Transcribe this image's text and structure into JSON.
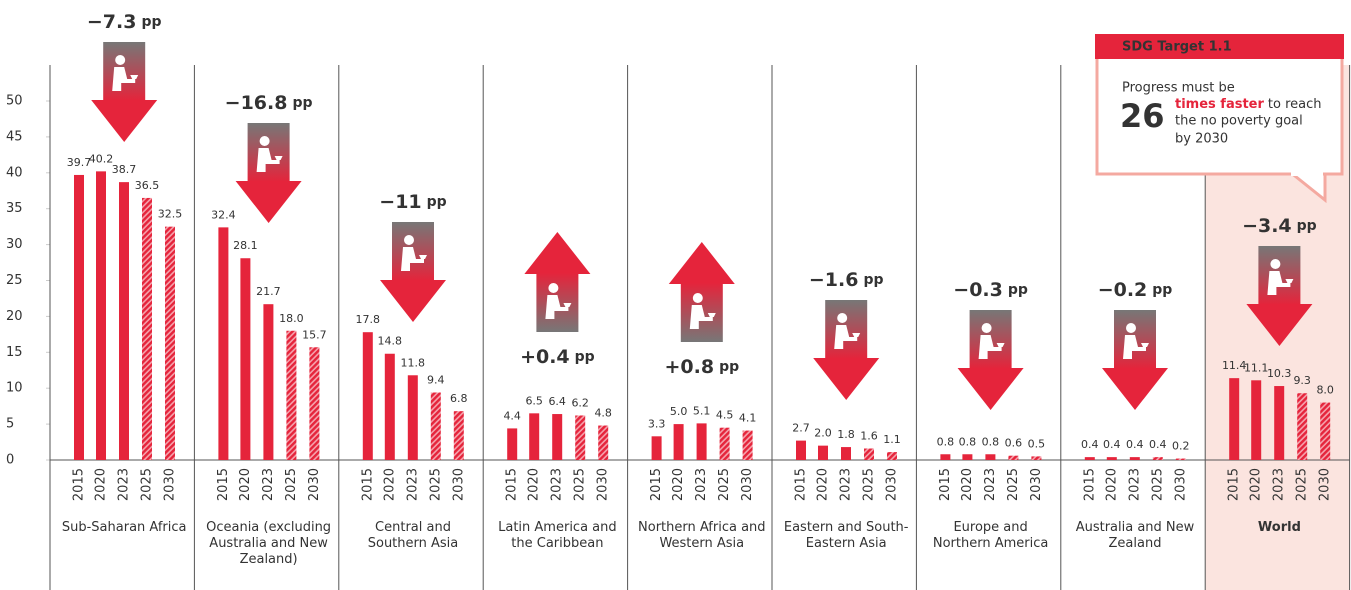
{
  "chart_data": {
    "type": "bar",
    "categories": [
      "2015",
      "2020",
      "2023",
      "2025",
      "2030"
    ],
    "ylim": [
      0,
      50
    ],
    "yticks": [
      0,
      5,
      10,
      15,
      20,
      25,
      30,
      35,
      40,
      45,
      50
    ],
    "color": "#e5243b",
    "change_unit": "pp",
    "groups": [
      {
        "name": "Sub-Saharan Africa",
        "values": [
          39.7,
          40.2,
          38.7,
          36.5,
          32.5
        ],
        "value_labels": [
          "39.7",
          "40.2",
          "38.7",
          "36.5",
          "32.5"
        ],
        "change": -7.3,
        "change_label": "−7.3"
      },
      {
        "name": "Oceania (excluding Australia and New Zealand)",
        "values": [
          32.4,
          28.1,
          21.7,
          18.0,
          15.7
        ],
        "value_labels": [
          "32.4",
          "28.1",
          "21.7",
          "18.0",
          "15.7"
        ],
        "change": -16.8,
        "change_label": "−16.8"
      },
      {
        "name": "Central and Southern Asia",
        "values": [
          17.8,
          14.8,
          11.8,
          9.4,
          6.8
        ],
        "value_labels": [
          "17.8",
          "14.8",
          "11.8",
          "9.4",
          "6.8"
        ],
        "change": -11,
        "change_label": "−11"
      },
      {
        "name": "Latin America and the Caribbean",
        "values": [
          4.4,
          6.5,
          6.4,
          6.2,
          4.8
        ],
        "value_labels": [
          "4.4",
          "6.5",
          "6.4",
          "6.2",
          "4.8"
        ],
        "change": 0.4,
        "change_label": "+0.4"
      },
      {
        "name": "Northern Africa and Western Asia",
        "values": [
          3.3,
          5.0,
          5.1,
          4.5,
          4.1
        ],
        "value_labels": [
          "3.3",
          "5.0",
          "5.1",
          "4.5",
          "4.1"
        ],
        "change": 0.8,
        "change_label": "+0.8"
      },
      {
        "name": "Eastern and South-Eastern Asia",
        "values": [
          2.7,
          2.0,
          1.8,
          1.6,
          1.1
        ],
        "value_labels": [
          "2.7",
          "2.0",
          "1.8",
          "1.6",
          "1.1"
        ],
        "change": -1.6,
        "change_label": "−1.6"
      },
      {
        "name": "Europe and Northern America",
        "values": [
          0.8,
          0.8,
          0.8,
          0.6,
          0.5
        ],
        "value_labels": [
          "0.8",
          "0.8",
          "0.8",
          "0.6",
          "0.5"
        ],
        "change": -0.3,
        "change_label": "−0.3"
      },
      {
        "name": "Australia and New Zealand",
        "values": [
          0.4,
          0.4,
          0.4,
          0.4,
          0.2
        ],
        "value_labels": [
          "0.4",
          "0.4",
          "0.4",
          "0.4",
          "0.2"
        ],
        "change": -0.2,
        "change_label": "−0.2"
      },
      {
        "name": "World",
        "values": [
          11.4,
          11.1,
          10.3,
          9.3,
          8.0
        ],
        "value_labels": [
          "11.4",
          "11.1",
          "10.3",
          "9.3",
          "8.0"
        ],
        "change": -3.4,
        "change_label": "−3.4"
      }
    ],
    "callout": {
      "title": "SDG Target 1.1",
      "intro": "Progress must be",
      "number": 26,
      "emphasis": "times faster",
      "text_lines": [
        "to reach",
        "the no poverty goal",
        "by 2030"
      ]
    }
  }
}
